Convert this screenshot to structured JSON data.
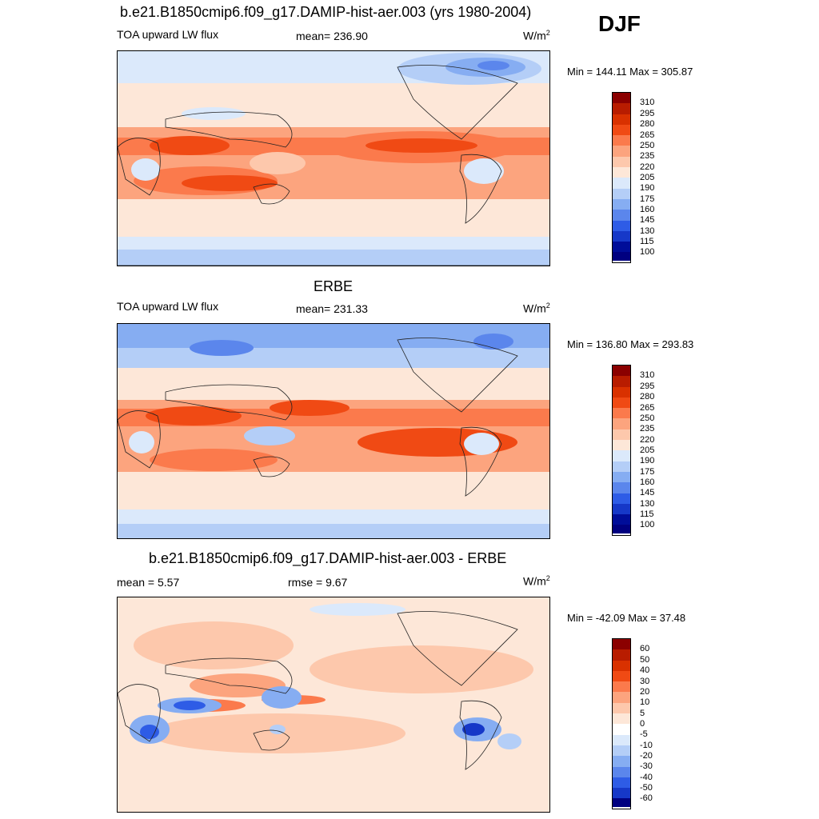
{
  "season": "DJF",
  "panels": [
    {
      "title": "b.e21.B1850cmip6.f09_g17.DAMIP-hist-aer.003 (yrs 1980-2004)",
      "left_label": "TOA upward LW flux",
      "center_label": "mean= 236.90",
      "units": "W/m",
      "units_sup": "2",
      "minmax": "Min = 144.11 Max = 305.87",
      "levels": [
        "310",
        "295",
        "280",
        "265",
        "250",
        "235",
        "220",
        "205",
        "190",
        "175",
        "160",
        "145",
        "130",
        "115",
        "100"
      ],
      "colors": [
        "#8b0000",
        "#b81c00",
        "#d93100",
        "#f04a14",
        "#fb7a4c",
        "#fca47e",
        "#fdc8ac",
        "#fde7d8",
        "#dbe9fb",
        "#b4cef7",
        "#86adf2",
        "#5b86ec",
        "#2e5ce6",
        "#1638c8",
        "#000d99",
        "#000080"
      ]
    },
    {
      "title": "ERBE",
      "left_label": "TOA upward LW flux",
      "center_label": "mean= 231.33",
      "units": "W/m",
      "units_sup": "2",
      "minmax": "Min = 136.80 Max = 293.83",
      "levels": [
        "310",
        "295",
        "280",
        "265",
        "250",
        "235",
        "220",
        "205",
        "190",
        "175",
        "160",
        "145",
        "130",
        "115",
        "100"
      ],
      "colors": [
        "#8b0000",
        "#b81c00",
        "#d93100",
        "#f04a14",
        "#fb7a4c",
        "#fca47e",
        "#fdc8ac",
        "#fde7d8",
        "#dbe9fb",
        "#b4cef7",
        "#86adf2",
        "#5b86ec",
        "#2e5ce6",
        "#1638c8",
        "#000d99",
        "#000080"
      ]
    },
    {
      "title": "b.e21.B1850cmip6.f09_g17.DAMIP-hist-aer.003 - ERBE",
      "left_label": "mean =   5.57",
      "center_label": "rmse =   9.67",
      "units": "W/m",
      "units_sup": "2",
      "minmax": "Min = -42.09 Max =  37.48",
      "levels": [
        "60",
        "50",
        "40",
        "30",
        "20",
        "10",
        "5",
        "0",
        "-5",
        "-10",
        "-20",
        "-30",
        "-40",
        "-50",
        "-60"
      ],
      "colors": [
        "#8b0000",
        "#b81c00",
        "#d93100",
        "#f04a14",
        "#fb7a4c",
        "#fca47e",
        "#fdc8ac",
        "#fde7d8",
        "#ffffff",
        "#dbe9fb",
        "#b4cef7",
        "#86adf2",
        "#5b86ec",
        "#2e5ce6",
        "#1638c8",
        "#000080"
      ]
    }
  ]
}
